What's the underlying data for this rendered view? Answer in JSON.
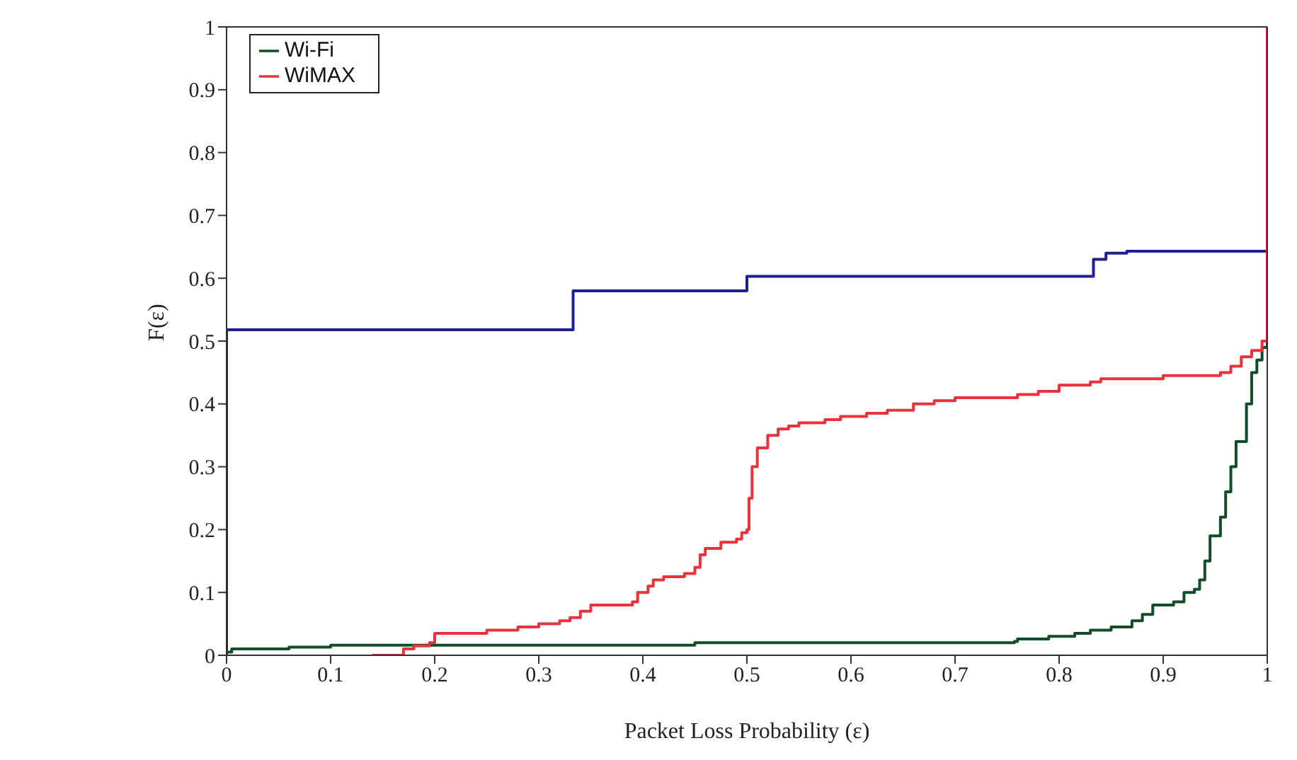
{
  "chart_data": {
    "type": "step",
    "xlabel": "Packet Loss Probability (ε)",
    "ylabel": "F(ε)",
    "xlim": [
      0,
      1
    ],
    "ylim": [
      0,
      1
    ],
    "xticks": [
      0,
      0.1,
      0.2,
      0.3,
      0.4,
      0.5,
      0.6,
      0.7,
      0.8,
      0.9,
      1
    ],
    "yticks": [
      0,
      0.1,
      0.2,
      0.3,
      0.4,
      0.5,
      0.6,
      0.7,
      0.8,
      0.9,
      1
    ],
    "grid": false,
    "legend": "top left",
    "marker": "none",
    "line_style": "solid",
    "series": [
      {
        "color": "#1f1f8f",
        "x": [
          0,
          0,
          0.333,
          0.5,
          0.833,
          0.845,
          0.865,
          1
        ],
        "values": [
          0,
          0.518,
          0.58,
          0.603,
          0.63,
          0.64,
          0.643,
          0.643
        ]
      },
      {
        "name": "Wi-Fi",
        "color": "#124d2a",
        "x": [
          0,
          0.005,
          0.06,
          0.1,
          0.45,
          0.757,
          0.76,
          0.79,
          0.815,
          0.83,
          0.85,
          0.87,
          0.88,
          0.89,
          0.91,
          0.92,
          0.93,
          0.935,
          0.94,
          0.945,
          0.955,
          0.96,
          0.965,
          0.97,
          0.98,
          0.985,
          0.99,
          0.995,
          1
        ],
        "values": [
          0.005,
          0.01,
          0.013,
          0.016,
          0.02,
          0.022,
          0.026,
          0.03,
          0.035,
          0.04,
          0.045,
          0.055,
          0.065,
          0.08,
          0.085,
          0.1,
          0.105,
          0.12,
          0.15,
          0.19,
          0.22,
          0.26,
          0.3,
          0.34,
          0.4,
          0.45,
          0.47,
          0.49,
          0.5
        ]
      },
      {
        "name": "WiMAX",
        "color": "#e8323c",
        "x": [
          0.14,
          0.17,
          0.18,
          0.195,
          0.2,
          0.25,
          0.28,
          0.3,
          0.32,
          0.33,
          0.34,
          0.35,
          0.39,
          0.395,
          0.405,
          0.41,
          0.42,
          0.44,
          0.45,
          0.455,
          0.46,
          0.475,
          0.49,
          0.495,
          0.5,
          0.502,
          0.505,
          0.51,
          0.52,
          0.53,
          0.54,
          0.55,
          0.575,
          0.59,
          0.615,
          0.635,
          0.66,
          0.68,
          0.7,
          0.76,
          0.78,
          0.8,
          0.83,
          0.84,
          0.9,
          0.955,
          0.965,
          0.975,
          0.985,
          0.995,
          1
        ],
        "values": [
          0,
          0.01,
          0.015,
          0.02,
          0.035,
          0.04,
          0.045,
          0.05,
          0.055,
          0.06,
          0.07,
          0.08,
          0.085,
          0.1,
          0.11,
          0.12,
          0.125,
          0.13,
          0.14,
          0.16,
          0.17,
          0.18,
          0.185,
          0.195,
          0.2,
          0.25,
          0.3,
          0.33,
          0.35,
          0.36,
          0.365,
          0.37,
          0.375,
          0.38,
          0.385,
          0.39,
          0.4,
          0.405,
          0.41,
          0.415,
          0.42,
          0.43,
          0.435,
          0.44,
          0.445,
          0.45,
          0.46,
          0.475,
          0.485,
          0.5,
          1
        ]
      }
    ]
  }
}
